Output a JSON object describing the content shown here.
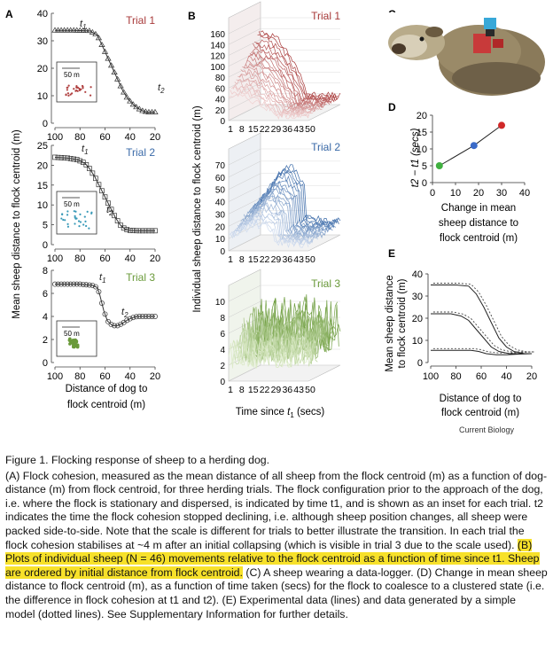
{
  "panels": {
    "A": {
      "letter": "A",
      "ylabel": "Mean sheep distance to flock centroid (m)",
      "xlabel_line1": "Distance of dog to",
      "xlabel_line2": "flock centroid (m)",
      "x_ticks": [
        "100",
        "80",
        "60",
        "40",
        "20"
      ],
      "trials": [
        {
          "name": "Trial 1",
          "color": "#a83a3a",
          "y_ticks": [
            "0",
            "10",
            "20",
            "30",
            "40"
          ],
          "t_start": "t1",
          "t_end": "t2",
          "scale": "50 m",
          "dot_color": "#b04040"
        },
        {
          "name": "Trial 2",
          "color": "#3a6aa8",
          "y_ticks": [
            "0",
            "5",
            "10",
            "15",
            "20",
            "25"
          ],
          "t_start": "t1",
          "t_end": "t2",
          "scale": "50 m",
          "dot_color": "#3a9ab8"
        },
        {
          "name": "Trial 3",
          "color": "#6a9a3a",
          "y_ticks": [
            "0",
            "2",
            "4",
            "6",
            "8"
          ],
          "t_start": "t1",
          "t_end": "t2",
          "scale": "50 m",
          "dot_color": "#6a9a3a"
        }
      ]
    },
    "B": {
      "letter": "B",
      "ylabel": "Individual sheep distance to flock centroid (m)",
      "xlabel": "Time since t1 (secs)",
      "x_ticks": [
        "1",
        "8",
        "15",
        "22",
        "29",
        "36",
        "43",
        "50"
      ],
      "trials": [
        {
          "name": "Trial 1",
          "color": "#a83a3a",
          "z_ticks": [
            "0",
            "20",
            "40",
            "60",
            "80",
            "100",
            "120",
            "140",
            "160"
          ]
        },
        {
          "name": "Trial 2",
          "color": "#3a6aa8",
          "z_ticks": [
            "0",
            "10",
            "20",
            "30",
            "40",
            "50",
            "60",
            "70"
          ]
        },
        {
          "name": "Trial 3",
          "color": "#6a9a3a",
          "z_ticks": [
            "0",
            "2",
            "4",
            "6",
            "8",
            "10"
          ]
        }
      ]
    },
    "C": {
      "letter": "C",
      "image": "sheep wearing data logger"
    },
    "D": {
      "letter": "D",
      "ylabel": "t2 − t1 (secs)",
      "xlabel_line1": "Change in mean",
      "xlabel_line2": "sheep distance to",
      "xlabel_line3": "flock centroid (m)",
      "x_ticks": [
        "0",
        "10",
        "20",
        "30",
        "40"
      ],
      "y_ticks": [
        "0",
        "5",
        "10",
        "15",
        "20"
      ],
      "points": [
        {
          "x": 3,
          "y": 5,
          "color": "#40b040"
        },
        {
          "x": 18,
          "y": 11,
          "color": "#3a6ac8"
        },
        {
          "x": 30,
          "y": 17,
          "color": "#d02828"
        }
      ]
    },
    "E": {
      "letter": "E",
      "ylabel_line1": "Mean sheep distance",
      "ylabel_line2": "to flock centroid (m)",
      "xlabel_line1": "Distance of dog to",
      "xlabel_line2": "flock centroid (m)",
      "x_ticks": [
        "100",
        "80",
        "60",
        "40",
        "20"
      ],
      "y_ticks": [
        "0",
        "10",
        "20",
        "30",
        "40"
      ]
    }
  },
  "credit": "Current Biology",
  "caption": {
    "title": "Figure 1. Flocking response of sheep to a herding dog.",
    "a": "(A) Flock cohesion, measured as the mean distance of all sheep from the flock centroid (m) as a function of dog-distance (m) from flock centroid, for three herding trials. The flock configuration prior to the approach of the dog, i.e. where the flock is stationary and dispersed, is indicated by time t1, and is shown as an inset for each trial. t2 indicates the time the flock cohesion stopped declining, i.e. although sheep position changes, all sheep were packed side-to-side. Note that the scale is different for trials to better illustrate the transition. In each trial the flock cohesion stabilises at ~4 m after an initial collapsing (which is visible in trial 3 due to the scale used).",
    "b": "(B) Plots of individual sheep (N = 46) movements relative to the flock centroid as a function of time since t1. Sheep are ordered by initial distance from flock centroid.",
    "rest": "(C) A sheep wearing a data-logger. (D) Change in mean sheep distance to flock centroid (m), as a function of time taken (secs) for the flock to coalesce to a clustered state (i.e. the difference in flock cohesion at t1 and t2). (E) Experimental data (lines) and data generated by a simple model (dotted lines). See Supplementary Information for further details."
  }
}
